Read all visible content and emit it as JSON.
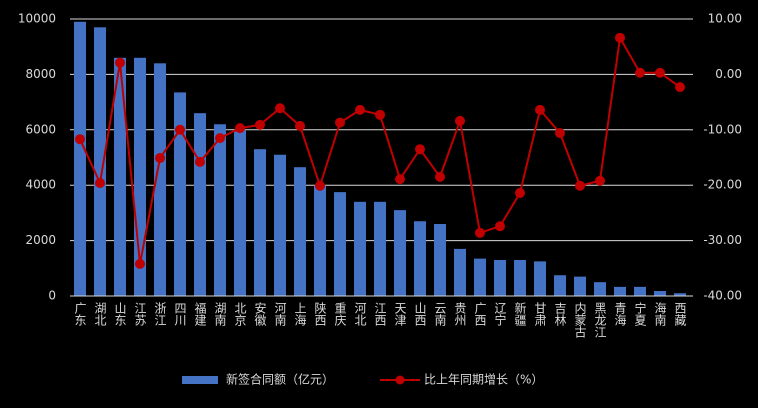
{
  "chart_data": {
    "type": "bar_line",
    "categories": [
      "广东",
      "湖北",
      "山东",
      "江苏",
      "浙江",
      "四川",
      "福建",
      "湖南",
      "北京",
      "安徽",
      "河南",
      "上海",
      "陕西",
      "重庆",
      "河北",
      "江西",
      "天津",
      "山西",
      "云南",
      "贵州",
      "广西",
      "辽宁",
      "新疆",
      "甘肃",
      "吉林",
      "内蒙古",
      "黑龙江",
      "青海",
      "宁夏",
      "海南",
      "西藏"
    ],
    "series": [
      {
        "name": "新签合同额（亿元）",
        "type": "bar",
        "color": "#4472c4",
        "values": [
          9900,
          9700,
          8600,
          8600,
          8400,
          7350,
          6600,
          6200,
          6000,
          5300,
          5100,
          4650,
          4000,
          3750,
          3400,
          3400,
          3100,
          2700,
          2600,
          1700,
          1350,
          1300,
          1300,
          1250,
          750,
          700,
          500,
          330,
          330,
          180,
          100
        ]
      },
      {
        "name": "比上年同期增长（%）",
        "type": "line",
        "axis": "y2",
        "color": "#c00000",
        "values": [
          -11.7,
          -19.6,
          2.1,
          -34.2,
          -15.1,
          -10.0,
          -15.8,
          -11.5,
          -9.7,
          -9.1,
          -6.1,
          -9.3,
          -20.1,
          -8.7,
          -6.4,
          -7.3,
          -18.9,
          -13.5,
          -18.5,
          -8.4,
          -28.6,
          -27.4,
          -21.4,
          -6.4,
          -10.6,
          -20.1,
          -19.2,
          6.6,
          0.3,
          0.3,
          -2.3
        ]
      }
    ],
    "ylim": [
      0,
      10000
    ],
    "yticks": [
      0,
      2000,
      4000,
      6000,
      8000,
      10000
    ],
    "y2lim": [
      -40,
      10
    ],
    "y2ticks": [
      {
        "value": -40,
        "label": "-40.00"
      },
      {
        "value": -30,
        "label": "-30.00"
      },
      {
        "value": -20,
        "label": "-20.00"
      },
      {
        "value": -10,
        "label": "-10.00"
      },
      {
        "value": 0,
        "label": "0.00"
      },
      {
        "value": 10,
        "label": "10.00"
      }
    ],
    "grid": true
  }
}
